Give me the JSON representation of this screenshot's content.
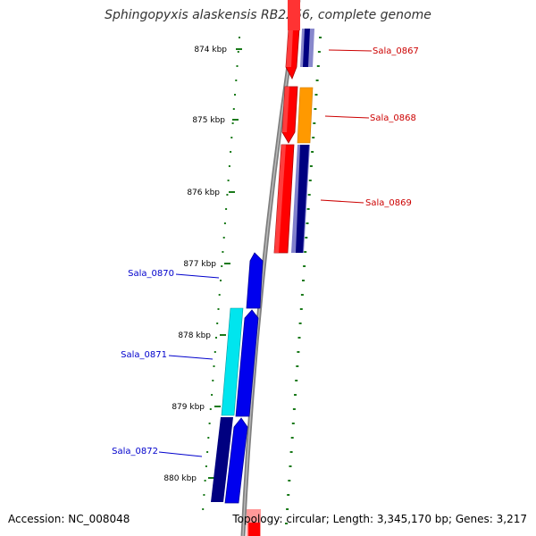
{
  "title": "Sphingopyxis alaskensis RB2256, complete genome",
  "accession": "Accession: NC_008048",
  "topology": "Topology: circular; Length: 3,345,170 bp; Genes: 3,217",
  "scale_labels": [
    "874 kbp",
    "875 kbp",
    "876 kbp",
    "877 kbp",
    "878 kbp",
    "879 kbp",
    "880 kbp"
  ],
  "colors": {
    "backbone": "#808080",
    "forward_gene": "#ff0000",
    "reverse_gene": "#0000ee",
    "forward_label": "#cc0000",
    "reverse_label": "#0000cc",
    "tick": "#1a7a1a",
    "orange_feature": "#ff9900",
    "cyan_feature": "#00e5ee",
    "navy_feature": "#000080",
    "lavender_feature": "#8080cc"
  },
  "genes": [
    {
      "name": "Sala_0867",
      "strand": "forward"
    },
    {
      "name": "Sala_0868",
      "strand": "forward"
    },
    {
      "name": "Sala_0869",
      "strand": "forward"
    },
    {
      "name": "Sala_0870",
      "strand": "reverse"
    },
    {
      "name": "Sala_0871",
      "strand": "reverse"
    },
    {
      "name": "Sala_0872",
      "strand": "reverse"
    }
  ]
}
